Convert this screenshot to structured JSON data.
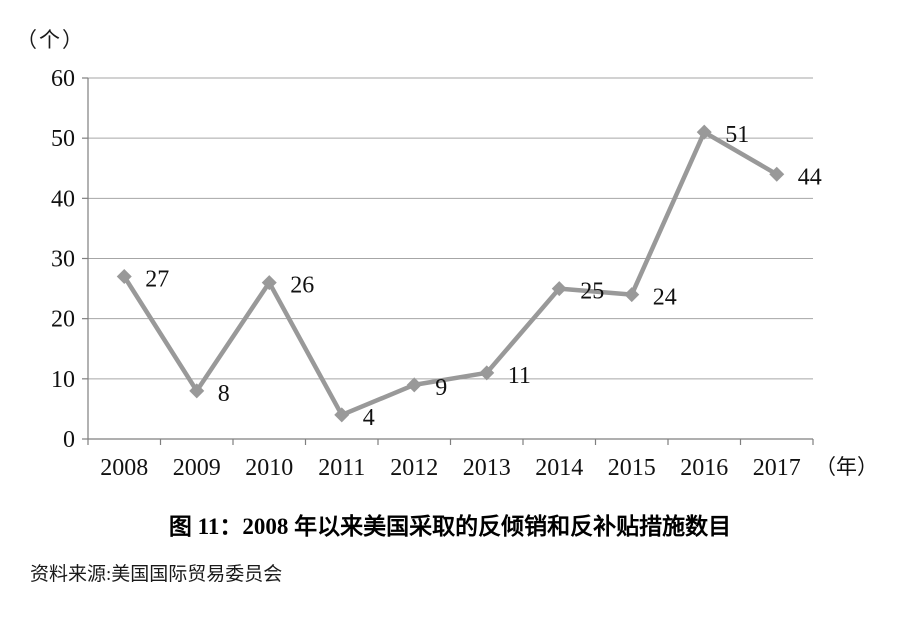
{
  "chart_data": {
    "type": "line",
    "title": "图 11：2008 年以来美国采取的反倾销和反补贴措施数目",
    "source": "资料来源:美国国际贸易委员会",
    "y_unit_label": "（个）",
    "x_unit_label": "（年）",
    "categories": [
      "2008",
      "2009",
      "2010",
      "2011",
      "2012",
      "2013",
      "2014",
      "2015",
      "2016",
      "2017"
    ],
    "values": [
      27,
      8,
      26,
      4,
      9,
      11,
      25,
      24,
      51,
      44
    ],
    "ylim": [
      0,
      60
    ],
    "y_ticks": [
      0,
      10,
      20,
      30,
      40,
      50,
      60
    ],
    "grid": "horizontal",
    "legend": "none",
    "marker": "diamond",
    "colors": {
      "series": "#999999",
      "gridline": "#a6a6a6",
      "axis": "#7f7f7f",
      "text": "#111111"
    }
  }
}
